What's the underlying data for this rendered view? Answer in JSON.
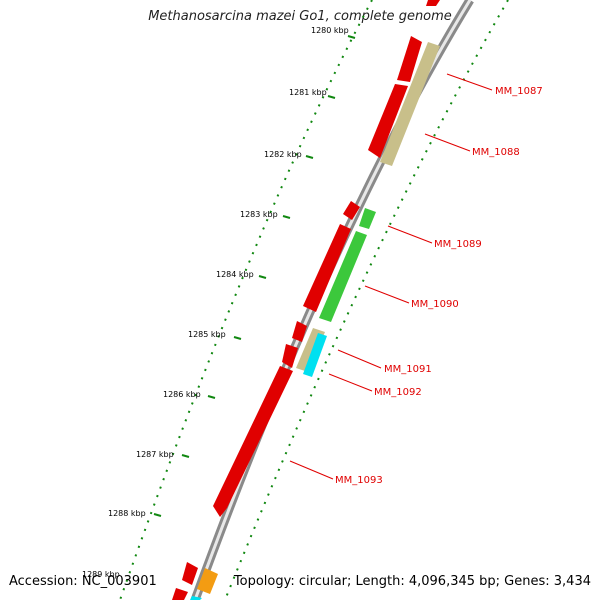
{
  "title": "Methanosarcina mazei Go1, complete genome",
  "footer": {
    "accession": "Accession: NC_003901",
    "summary": "Topology: circular; Length: 4,096,345 bp; Genes: 3,434"
  },
  "tick_labels": [
    "1280 kbp",
    "1281 kbp",
    "1282 kbp",
    "1283 kbp",
    "1284 kbp",
    "1285 kbp",
    "1286 kbp",
    "1287 kbp",
    "1288 kbp",
    "1289 kbp"
  ],
  "genes": [
    "MM_1087",
    "MM_1088",
    "MM_1089",
    "MM_1090",
    "MM_1091",
    "MM_1092",
    "MM_1093"
  ],
  "colors": {
    "red": "#e00000",
    "khaki": "#c8bf8a",
    "green": "#3cc83c",
    "cyan": "#00e0f0",
    "orange": "#f39c12",
    "backbone": "#999999",
    "ticks": "#118811"
  }
}
